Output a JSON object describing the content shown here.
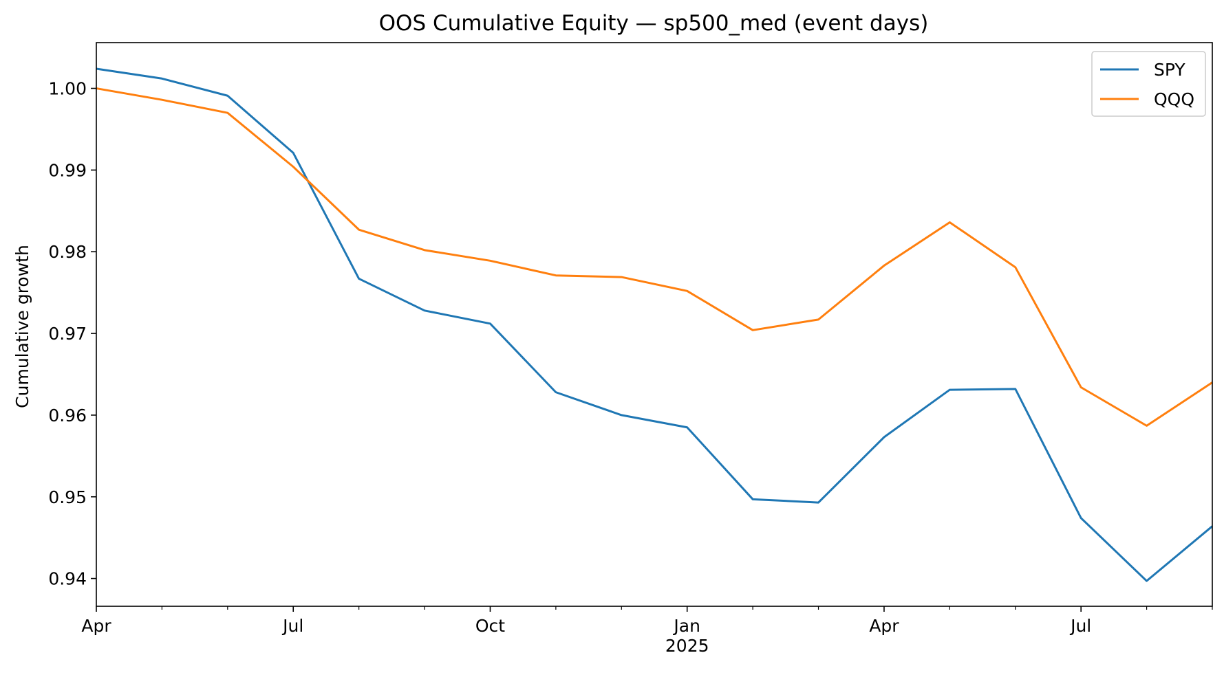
{
  "chart_data": {
    "type": "line",
    "title": "OOS Cumulative Equity — sp500_med (event days)",
    "xlabel": "",
    "ylabel": "Cumulative growth",
    "x": [
      "2024-04",
      "2024-05",
      "2024-06",
      "2024-07",
      "2024-08",
      "2024-09",
      "2024-10",
      "2024-11",
      "2024-12",
      "2025-01",
      "2025-02",
      "2025-03",
      "2025-04",
      "2025-05",
      "2025-06",
      "2025-07",
      "2025-08",
      "2025-09"
    ],
    "xlim": [
      "2024-04",
      "2025-09"
    ],
    "ylim": [
      0.9366,
      1.0056
    ],
    "yticks": [
      0.94,
      0.95,
      0.96,
      0.97,
      0.98,
      0.99,
      1.0
    ],
    "ytick_labels": [
      "0.94",
      "0.95",
      "0.96",
      "0.97",
      "0.98",
      "0.99",
      "1.00"
    ],
    "xticks_major": [
      {
        "x": "2024-04",
        "label": "Apr",
        "sublabel": ""
      },
      {
        "x": "2024-07",
        "label": "Jul",
        "sublabel": ""
      },
      {
        "x": "2024-10",
        "label": "Oct",
        "sublabel": ""
      },
      {
        "x": "2025-01",
        "label": "Jan",
        "sublabel": "2025"
      },
      {
        "x": "2025-04",
        "label": "Apr",
        "sublabel": ""
      },
      {
        "x": "2025-07",
        "label": "Jul",
        "sublabel": ""
      }
    ],
    "xticks_minor": [
      "2024-05",
      "2024-06",
      "2024-08",
      "2024-09",
      "2024-11",
      "2024-12",
      "2025-02",
      "2025-03",
      "2025-05",
      "2025-06",
      "2025-08",
      "2025-09"
    ],
    "series": [
      {
        "name": "SPY",
        "color": "#1f77b4",
        "values": [
          1.0024,
          1.0012,
          0.9991,
          0.9921,
          0.9767,
          0.9728,
          0.9712,
          0.9628,
          0.96,
          0.9585,
          0.9497,
          0.9493,
          0.9573,
          0.9631,
          0.9632,
          0.9474,
          0.9397,
          0.9464
        ]
      },
      {
        "name": "QQQ",
        "color": "#ff7f0e",
        "values": [
          1.0,
          0.9986,
          0.997,
          0.9904,
          0.9827,
          0.9802,
          0.9789,
          0.9771,
          0.9769,
          0.9752,
          0.9704,
          0.9717,
          0.9783,
          0.9836,
          0.9781,
          0.9634,
          0.9587,
          0.964
        ]
      }
    ],
    "grid": false,
    "legend_position": "top-right"
  }
}
